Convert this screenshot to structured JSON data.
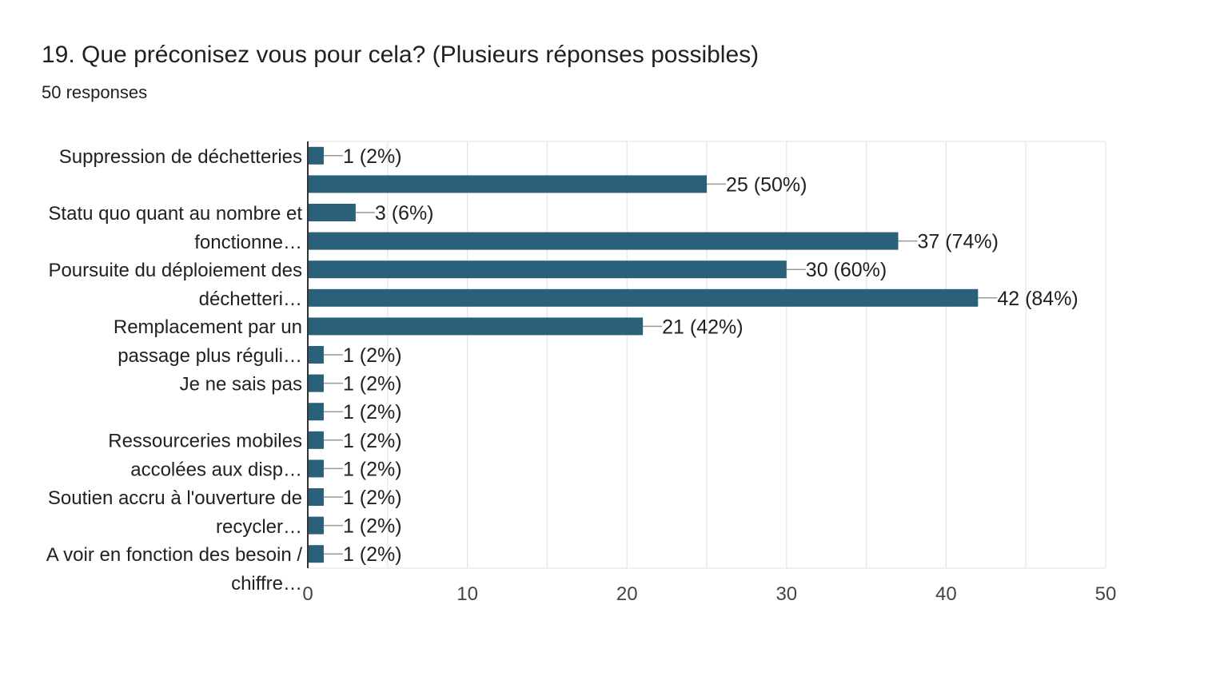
{
  "header": {
    "question": "19. Que préconisez vous pour cela? (Plusieurs réponses possibles)",
    "responses": "50 responses"
  },
  "colors": {
    "bar": "#2a6079",
    "grid": "#e6e6e6",
    "axis": "#333333",
    "leader": "#999999"
  },
  "chart_data": {
    "type": "bar",
    "orientation": "horizontal",
    "category_labels": [
      [
        "Suppression de déchetteries"
      ],
      [
        "Statu quo quant au nombre et",
        "fonctionne…"
      ],
      [
        "Poursuite du déploiement des",
        "déchetteri…"
      ],
      [
        "Remplacement par un",
        "passage plus réguli…"
      ],
      [
        "Je ne sais pas"
      ],
      [
        "Ressourceries mobiles",
        "accolées aux disp…"
      ],
      [
        "Soutien accru à l'ouverture de",
        "recycler…"
      ],
      [
        "A voir en fonction des besoin /",
        "chiffre…"
      ]
    ],
    "values": [
      1,
      25,
      3,
      37,
      30,
      42,
      21,
      1,
      1,
      1,
      1,
      1,
      1,
      1,
      1
    ],
    "data_labels": [
      "1 (2%)",
      "25 (50%)",
      "3 (6%)",
      "37 (74%)",
      "30 (60%)",
      "42 (84%)",
      "21 (42%)",
      "1 (2%)",
      "1 (2%)",
      "1 (2%)",
      "1 (2%)",
      "1 (2%)",
      "1 (2%)",
      "1 (2%)",
      "1 (2%)"
    ],
    "xlim": [
      0,
      50
    ],
    "xticks": [
      0,
      10,
      20,
      30,
      40,
      50
    ],
    "grid": true,
    "legend": "none"
  }
}
